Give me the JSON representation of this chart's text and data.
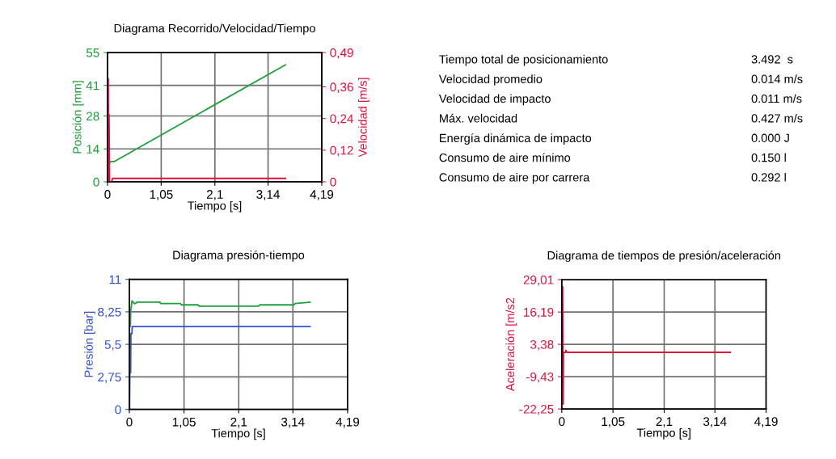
{
  "chart_data": [
    {
      "type": "line",
      "title": "Diagrama Recorrido/Velocidad/Tiempo",
      "xlabel": "Tiempo [s]",
      "ylabel": "Posición [mm]",
      "y2label": "Velocidad [m/s]",
      "grid": true,
      "marker": "none",
      "line_style": "solid",
      "xlim": [
        0,
        4.19
      ],
      "xticks": [
        0,
        {
          "value": 1.05,
          "label": "1,05"
        },
        {
          "value": 2.1,
          "label": "2,1"
        },
        {
          "value": 3.14,
          "label": "3,14"
        },
        {
          "value": 4.19,
          "label": "4,19"
        }
      ],
      "ylim": [
        0,
        55
      ],
      "yticks": [
        0,
        14,
        28,
        41,
        55
      ],
      "y2lim": [
        0,
        0.49
      ],
      "y2ticks": [
        0,
        {
          "value": 0.12,
          "label": "0,12"
        },
        {
          "value": 0.24,
          "label": "0,24"
        },
        {
          "value": 0.36,
          "label": "0,36"
        },
        {
          "value": 0.49,
          "label": "0,49"
        }
      ],
      "series": [
        {
          "color": "#1fa03c",
          "x": [
            0,
            0.02,
            0.03,
            0.05,
            0.13,
            3.48
          ],
          "values": [
            0,
            0,
            7,
            8.6,
            8.6,
            49.8
          ]
        },
        {
          "color": "#e0103c",
          "axis": "y2",
          "x": [
            0,
            0.01,
            0.015,
            0.02,
            0.03,
            0.04,
            0.08,
            0.1,
            3.48
          ],
          "values": [
            0,
            0,
            0.39,
            0,
            0.255,
            0,
            0,
            0.013,
            0.013
          ]
        }
      ]
    },
    {
      "type": "other",
      "annotations": [
        "Tiempo total de posicionamiento",
        "3.492  s",
        "Velocidad promedio",
        "0.014 m/s",
        "Velocidad de impacto",
        "0.011 m/s",
        "Máx. velocidad",
        "0.427 m/s",
        "Energía dinámica de impacto",
        "0.000 J",
        "Consumo de aire mínimo",
        "0.150 l",
        "Consumo de aire por carrera",
        "0.292 l"
      ]
    },
    {
      "type": "line",
      "title": "Diagrama presión-tiempo",
      "xlabel": "Tiempo [s]",
      "ylabel": "Presión [bar]",
      "grid": true,
      "marker": "none",
      "line_style": "solid",
      "xlim": [
        0,
        4.19
      ],
      "xticks": [
        0,
        {
          "value": 1.05,
          "label": "1,05"
        },
        {
          "value": 2.1,
          "label": "2,1"
        },
        {
          "value": 3.14,
          "label": "3,14"
        },
        {
          "value": 4.19,
          "label": "4,19"
        }
      ],
      "ylim": [
        0,
        11
      ],
      "yticks": [
        0,
        {
          "value": 2.75,
          "label": "2,75"
        },
        {
          "value": 5.5,
          "label": "5,5"
        },
        {
          "value": 8.25,
          "label": "8,25"
        },
        11
      ],
      "series": [
        {
          "color": "#3050d8",
          "x": [
            0.005,
            0.01,
            0.025,
            0.03,
            0.05,
            0.055,
            3.47
          ],
          "values": [
            0,
            3.1,
            3.1,
            6.4,
            6.4,
            7.0,
            7.0
          ]
        },
        {
          "color": "#1fa03c",
          "x": [
            0,
            0.02,
            0.026,
            0.052,
            0.1,
            0.155,
            0.59,
            0.6,
            0.98,
            1.0,
            1.32,
            1.34,
            2.48,
            2.5,
            3.16,
            3.18,
            3.47
          ],
          "values": [
            7.0,
            7.0,
            8.3,
            9.18,
            8.93,
            9.07,
            9.07,
            8.95,
            8.95,
            8.84,
            8.84,
            8.73,
            8.73,
            8.84,
            8.84,
            8.95,
            9.07
          ]
        }
      ]
    },
    {
      "type": "line",
      "title": "Diagrama de tiempos de presión/aceleración",
      "xlabel": "Tiempo [s]",
      "ylabel": "Aceleración [m/s2",
      "grid": true,
      "marker": "none",
      "line_style": "solid",
      "xlim": [
        0,
        4.19
      ],
      "xticks": [
        0,
        {
          "value": 1.05,
          "label": "1,05"
        },
        {
          "value": 2.1,
          "label": "2,1"
        },
        {
          "value": 3.14,
          "label": "3,14"
        },
        {
          "value": 4.19,
          "label": "4,19"
        }
      ],
      "ylim": [
        -22.25,
        29.01
      ],
      "yticks": [
        {
          "value": -22.25,
          "label": "-22,25"
        },
        {
          "value": -9.43,
          "label": "-9,43"
        },
        {
          "value": 3.38,
          "label": "3,38"
        },
        {
          "value": 16.19,
          "label": "16,19"
        },
        {
          "value": 29.01,
          "label": "29,01"
        }
      ],
      "series": [
        {
          "color": "#e0103c",
          "x": [
            0,
            0.005,
            0.01,
            0.017,
            0.022,
            0.028,
            0.035,
            0.08,
            0.085,
            0.1,
            3.455
          ],
          "values": [
            0.2,
            14,
            0.2,
            26.3,
            0.2,
            -20.3,
            0.2,
            0.2,
            1.0,
            0.2,
            0.2
          ]
        }
      ]
    }
  ]
}
